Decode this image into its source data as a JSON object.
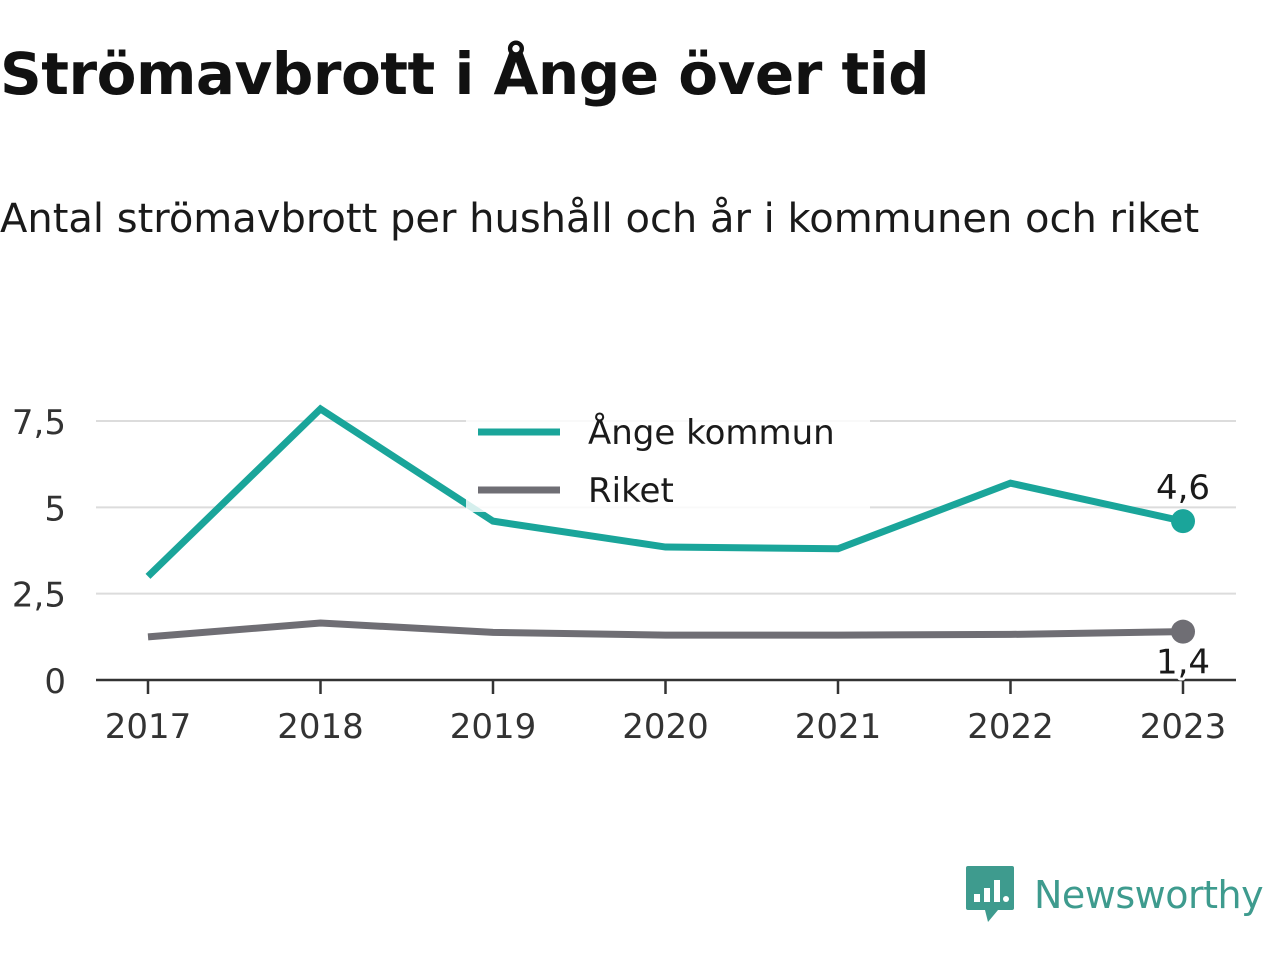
{
  "chart_data": {
    "type": "line",
    "title": "Strömavbrott i Ånge över tid",
    "subtitle": "Antal strömavbrott per hushåll och år i kommunen och riket",
    "categories": [
      "2017",
      "2018",
      "2019",
      "2020",
      "2021",
      "2022",
      "2023"
    ],
    "series": [
      {
        "name": "Ånge kommun",
        "color": "#1aa59a",
        "values": [
          3.0,
          7.85,
          4.6,
          3.85,
          3.8,
          5.7,
          4.6
        ],
        "end_label": "4,6"
      },
      {
        "name": "Riket",
        "color": "#6f6e74",
        "values": [
          1.25,
          1.65,
          1.38,
          1.3,
          1.3,
          1.32,
          1.4
        ],
        "end_label": "1,4"
      }
    ],
    "ylim": [
      0,
      7.5
    ],
    "yticks": [
      {
        "value": 0,
        "label": "0"
      },
      {
        "value": 2.5,
        "label": "2,5"
      },
      {
        "value": 5,
        "label": "5"
      },
      {
        "value": 7.5,
        "label": "7,5"
      }
    ],
    "grid": true,
    "legend": "top-center",
    "xlabel": "",
    "ylabel": ""
  },
  "brand": {
    "name": "Newsworthy",
    "color": "#3e9b8e",
    "icon": "newsworthy-logo-icon"
  }
}
